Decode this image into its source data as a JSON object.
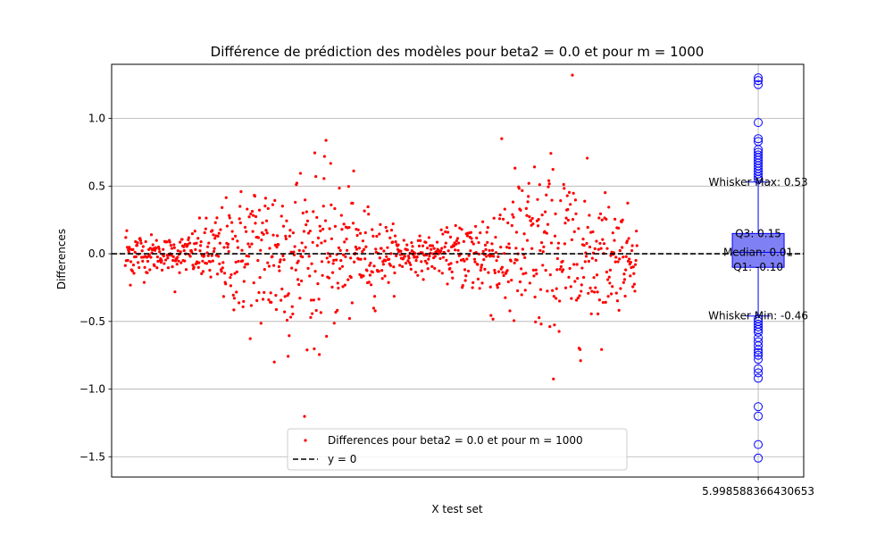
{
  "chart_data": {
    "type": "scatter",
    "title": "Différence de prédiction des modèles pour beta2 = 0.0 et pour m = 1000",
    "xlabel": "X test set",
    "ylabel": "Differences",
    "xlim": [
      -0.36,
      17.9
    ],
    "ylim": [
      -1.65,
      1.4
    ],
    "yticks": [
      -1.5,
      -1.0,
      -0.5,
      0.0,
      0.5,
      1.0
    ],
    "ytick_labels": [
      "−1.5",
      "−1.0",
      "−0.5",
      "0.0",
      "0.5",
      "1.0"
    ],
    "xtick_value": 16.7,
    "xtick_label": "5.998588366430653",
    "grid": true,
    "legend_position": "lower-center",
    "colors": {
      "points": "#ff0000",
      "box_fill": "#8080f5",
      "box_edge": "#0000ff",
      "zero_line": "#000000"
    },
    "series": [
      {
        "name": "Differences pour beta2 = 0.0 et pour m = 1000",
        "kind": "scatter",
        "count": 1000,
        "x_range": [
          0,
          13.5
        ]
      },
      {
        "name": "y = 0",
        "kind": "hline",
        "y": 0.0
      }
    ],
    "boxplot": {
      "position": 16.7,
      "q1": -0.1,
      "median": 0.01,
      "q3": 0.15,
      "whisker_min": -0.46,
      "whisker_max": 0.53,
      "outliers_high": [
        0.55,
        0.57,
        0.59,
        0.61,
        0.63,
        0.65,
        0.67,
        0.69,
        0.71,
        0.73,
        0.75,
        0.77,
        0.83,
        0.85,
        0.97,
        1.25,
        1.28,
        1.3
      ],
      "outliers_low": [
        -0.48,
        -0.5,
        -0.52,
        -0.54,
        -0.56,
        -0.58,
        -0.62,
        -0.65,
        -0.68,
        -0.71,
        -0.73,
        -0.75,
        -0.78,
        -0.85,
        -0.88,
        -0.92,
        -1.13,
        -1.2,
        -1.41,
        -1.51
      ]
    },
    "annotations": [
      {
        "text": "Whisker Max: 0.53",
        "y": 0.53
      },
      {
        "text": "Q3: 0.15",
        "y": 0.15
      },
      {
        "text": "Median: 0.01",
        "y": 0.01
      },
      {
        "text": "Q1: -0.10",
        "y": -0.1
      },
      {
        "text": "Whisker Min: -0.46",
        "y": -0.46
      }
    ]
  }
}
